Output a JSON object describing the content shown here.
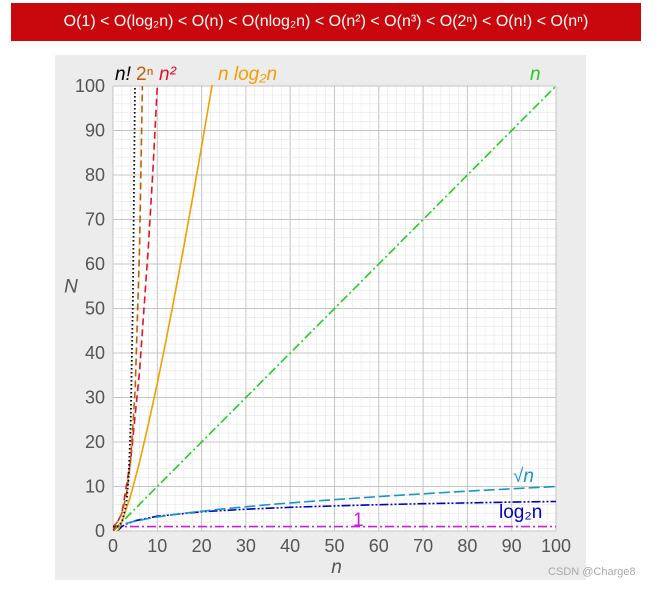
{
  "header": {
    "text": "O(1) < O(log₂n) < O(n) < O(nlog₂n) < O(n²) < O(n³) < O(2ⁿ) < O(n!) < O(nⁿ)"
  },
  "watermark": "CSDN @Charge8",
  "chart_data": {
    "type": "line",
    "xlabel": "n",
    "ylabel": "N",
    "xlim": [
      0,
      100
    ],
    "ylim": [
      0,
      100
    ],
    "x_ticks": [
      "0",
      "10",
      "20",
      "30",
      "40",
      "50",
      "60",
      "70",
      "80",
      "90",
      "100"
    ],
    "y_ticks": [
      "0",
      "10",
      "20",
      "30",
      "40",
      "50",
      "60",
      "70",
      "80",
      "90",
      "100"
    ],
    "grid": true,
    "legend": "inline labels at curve ends",
    "series": [
      {
        "name": "1",
        "color": "#c71fd9",
        "dash": "dashdot",
        "points": [
          [
            0,
            1
          ],
          [
            25,
            1
          ],
          [
            50,
            1
          ],
          [
            75,
            1
          ],
          [
            100,
            1
          ]
        ]
      },
      {
        "name": "log₂n",
        "color": "#0000c8",
        "dash": "dashdotdot",
        "points": [
          [
            1,
            0
          ],
          [
            2,
            1
          ],
          [
            3,
            1.58
          ],
          [
            5,
            2.32
          ],
          [
            10,
            3.32
          ],
          [
            20,
            4.32
          ],
          [
            30,
            4.91
          ],
          [
            40,
            5.32
          ],
          [
            50,
            5.64
          ],
          [
            60,
            5.91
          ],
          [
            70,
            6.13
          ],
          [
            80,
            6.32
          ],
          [
            90,
            6.49
          ],
          [
            100,
            6.64
          ]
        ]
      },
      {
        "name": "√n",
        "color": "#1a94c4",
        "dash": "longdash",
        "points": [
          [
            0,
            0
          ],
          [
            1,
            1
          ],
          [
            2,
            1.41
          ],
          [
            4,
            2
          ],
          [
            9,
            3
          ],
          [
            16,
            4
          ],
          [
            25,
            5
          ],
          [
            36,
            6
          ],
          [
            49,
            7
          ],
          [
            64,
            8
          ],
          [
            81,
            9
          ],
          [
            100,
            10
          ]
        ]
      },
      {
        "name": "n",
        "color": "#22cc22",
        "dash": "dashdot",
        "points": [
          [
            0,
            0
          ],
          [
            100,
            100
          ]
        ]
      },
      {
        "name": "n log₂n",
        "color": "#f0a000",
        "dash": "solid",
        "points": [
          [
            1,
            0
          ],
          [
            2,
            2
          ],
          [
            4,
            8
          ],
          [
            6,
            15.5
          ],
          [
            8,
            24
          ],
          [
            10,
            33.2
          ],
          [
            12,
            43
          ],
          [
            14,
            53.3
          ],
          [
            16,
            64
          ],
          [
            18,
            75
          ],
          [
            20,
            86.4
          ],
          [
            22,
            98.1
          ],
          [
            22.5,
            101
          ]
        ]
      },
      {
        "name": "n²",
        "color": "#e8102a",
        "dash": "dash",
        "points": [
          [
            0,
            0
          ],
          [
            2,
            4
          ],
          [
            4,
            16
          ],
          [
            6,
            36
          ],
          [
            8,
            64
          ],
          [
            9,
            81
          ],
          [
            10,
            100
          ]
        ]
      },
      {
        "name": "2ⁿ",
        "color": "#c06000",
        "dash": "dash",
        "points": [
          [
            0,
            1
          ],
          [
            1,
            2
          ],
          [
            2,
            4
          ],
          [
            3,
            8
          ],
          [
            4,
            16
          ],
          [
            5,
            32
          ],
          [
            6,
            64
          ],
          [
            6.644,
            100
          ]
        ]
      },
      {
        "name": "n!",
        "color": "#000000",
        "dash": "dotted",
        "points": [
          [
            0,
            1
          ],
          [
            1,
            1
          ],
          [
            2,
            2
          ],
          [
            3,
            6
          ],
          [
            3.5,
            11.6
          ],
          [
            4,
            24
          ],
          [
            4.5,
            52.3
          ],
          [
            4.97,
            100
          ]
        ]
      }
    ],
    "labels": {
      "nfact": "n!",
      "twon": "2ⁿ",
      "nsq": "n²",
      "nlogn": "n log₂n",
      "n": "n",
      "sqrtn": "√n",
      "logn": "log₂n",
      "one": "1"
    }
  }
}
